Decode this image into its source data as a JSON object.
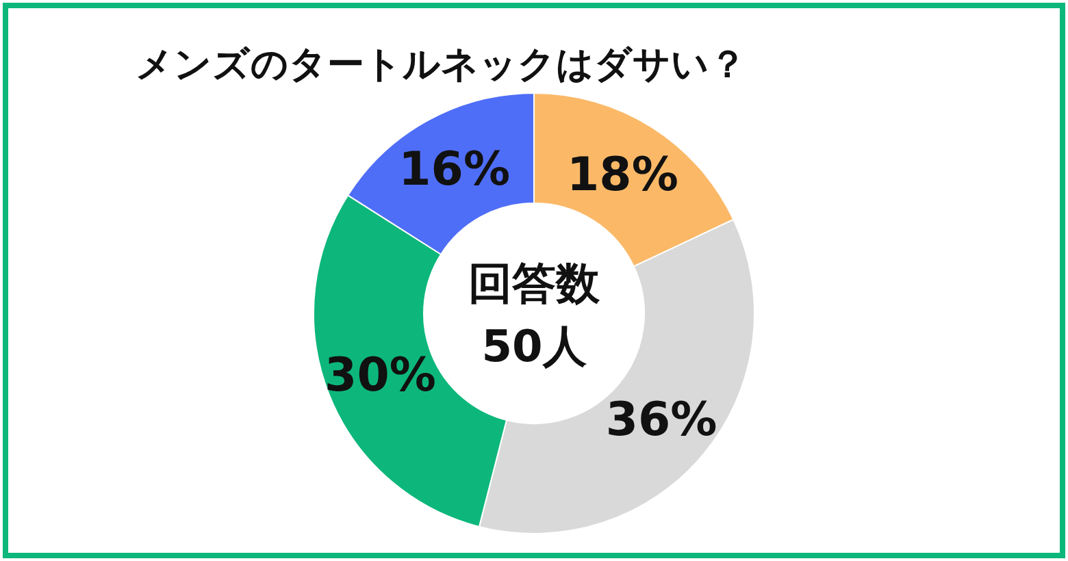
{
  "chart_data": {
    "type": "donut",
    "title": "メンズのタートルネックはダサい？",
    "categories": [
      null,
      null,
      null,
      null
    ],
    "values": [
      18,
      36,
      30,
      16
    ],
    "colors": [
      "#fbb968",
      "#d9d9d9",
      "#0db77b",
      "#4f6ef7"
    ],
    "value_labels": [
      "18%",
      "36%",
      "30%",
      "16%"
    ],
    "annotations": [
      "回答数",
      "50人"
    ]
  }
}
